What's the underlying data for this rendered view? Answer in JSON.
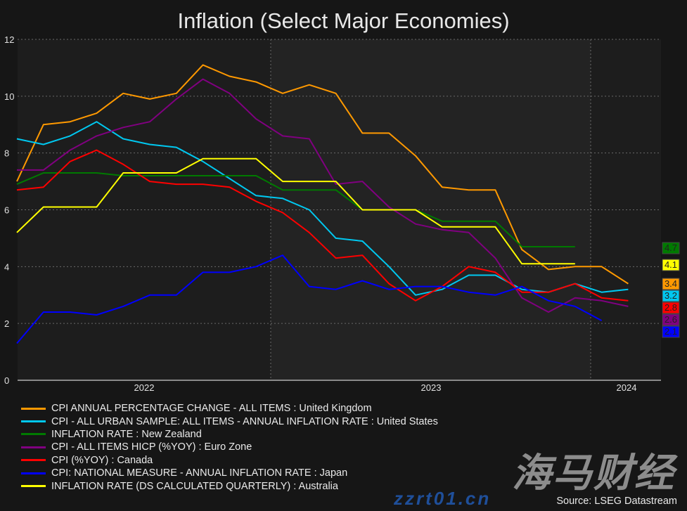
{
  "chart_data": {
    "type": "line",
    "title": "Inflation (Select Major Economies)",
    "x": [
      "2022-03",
      "2022-04",
      "2022-05",
      "2022-06",
      "2022-07",
      "2022-08",
      "2022-09",
      "2022-10",
      "2022-11",
      "2022-12",
      "2023-01",
      "2023-02",
      "2023-03",
      "2023-04",
      "2023-05",
      "2023-06",
      "2023-07",
      "2023-08",
      "2023-09",
      "2023-10",
      "2023-11",
      "2023-12",
      "2024-01",
      "2024-02"
    ],
    "x_tick_labels": [
      "2022",
      "2023",
      "2024"
    ],
    "y_ticks": [
      "0",
      "2",
      "4",
      "6",
      "8",
      "10",
      "12"
    ],
    "ylim": [
      0,
      12
    ],
    "grid": true,
    "legend_placement": "bottom-left",
    "series": [
      {
        "name": "CPI ANNUAL PERCENTAGE CHANGE - ALL ITEMS : United Kingdom",
        "color": "#ff9900",
        "last_label": "3.4",
        "values": [
          7.0,
          9.0,
          9.1,
          9.4,
          10.1,
          9.9,
          10.1,
          11.1,
          10.7,
          10.5,
          10.1,
          10.4,
          10.1,
          8.7,
          8.7,
          7.9,
          6.8,
          6.7,
          6.7,
          4.6,
          3.9,
          4.0,
          4.0,
          3.4
        ]
      },
      {
        "name": "CPI - ALL URBAN SAMPLE: ALL ITEMS - ANNUAL INFLATION RATE : United States",
        "color": "#00c8f0",
        "last_label": "3.2",
        "values": [
          8.5,
          8.3,
          8.6,
          9.1,
          8.5,
          8.3,
          8.2,
          7.7,
          7.1,
          6.5,
          6.4,
          6.0,
          5.0,
          4.9,
          4.0,
          3.0,
          3.2,
          3.7,
          3.7,
          3.2,
          3.1,
          3.4,
          3.1,
          3.2
        ]
      },
      {
        "name": "INFLATION RATE : New Zealand",
        "color": "#007a00",
        "last_label": "4.7",
        "values": [
          6.9,
          7.3,
          7.3,
          7.3,
          7.2,
          7.2,
          7.2,
          7.2,
          7.2,
          7.2,
          6.7,
          6.7,
          6.7,
          6.0,
          6.0,
          6.0,
          5.6,
          5.6,
          5.6,
          4.7,
          4.7,
          4.7,
          null,
          null
        ]
      },
      {
        "name": "CPI - ALL ITEMS HICP (%YOY) : Euro Zone",
        "color": "#800080",
        "last_label": "2.6",
        "values": [
          7.4,
          7.4,
          8.1,
          8.6,
          8.9,
          9.1,
          9.9,
          10.6,
          10.1,
          9.2,
          8.6,
          8.5,
          6.9,
          7.0,
          6.1,
          5.5,
          5.3,
          5.2,
          4.3,
          2.9,
          2.4,
          2.9,
          2.8,
          2.6
        ]
      },
      {
        "name": "CPI (%YOY) : Canada",
        "color": "#ff0000",
        "last_label": "2.8",
        "values": [
          6.7,
          6.8,
          7.7,
          8.1,
          7.6,
          7.0,
          6.9,
          6.9,
          6.8,
          6.3,
          5.9,
          5.2,
          4.3,
          4.4,
          3.4,
          2.8,
          3.3,
          4.0,
          3.8,
          3.1,
          3.1,
          3.4,
          2.9,
          2.8
        ]
      },
      {
        "name": "CPI: NATIONAL MEASURE - ANNUAL INFLATION RATE : Japan",
        "color": "#0000ff",
        "last_label": "2.1",
        "values": [
          1.3,
          2.4,
          2.4,
          2.3,
          2.6,
          3.0,
          3.0,
          3.8,
          3.8,
          4.0,
          4.4,
          3.3,
          3.2,
          3.5,
          3.2,
          3.3,
          3.3,
          3.1,
          3.0,
          3.3,
          2.8,
          2.6,
          2.1,
          null
        ]
      },
      {
        "name": "INFLATION RATE (DS CALCULATED QUARTERLY) : Australia",
        "color": "#ffff00",
        "last_label": "4.1",
        "values": [
          5.2,
          6.1,
          6.1,
          6.1,
          7.3,
          7.3,
          7.3,
          7.8,
          7.8,
          7.8,
          7.0,
          7.0,
          7.0,
          6.0,
          6.0,
          6.0,
          5.4,
          5.4,
          5.4,
          4.1,
          4.1,
          4.1,
          null,
          null
        ]
      }
    ],
    "source": "Source: LSEG Datastream"
  },
  "watermark": "海马财经 zzrt01.cn"
}
